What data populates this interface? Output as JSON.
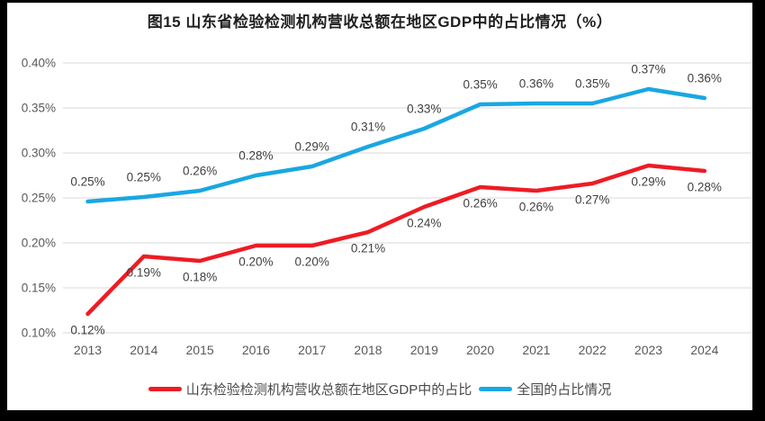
{
  "title": "图15  山东省检验检测机构营收总额在地区GDP中的占比情况（%）",
  "chart_data": {
    "type": "line",
    "title": "图15  山东省检验检测机构营收总额在地区GDP中的占比情况（%）",
    "categories": [
      "2013",
      "2014",
      "2015",
      "2016",
      "2017",
      "2018",
      "2019",
      "2020",
      "2021",
      "2022",
      "2023",
      "2024"
    ],
    "y_axis": {
      "min": 0.1,
      "max": 0.4,
      "step": 0.05,
      "tick_labels": [
        "0.10%",
        "0.15%",
        "0.20%",
        "0.25%",
        "0.30%",
        "0.35%",
        "0.40%"
      ]
    },
    "grid": true,
    "legend_position": "bottom",
    "series": [
      {
        "name": "山东检验检测机构营收总额在地区GDP中的占比",
        "color": "#ed1c24",
        "values": [
          0.12,
          0.19,
          0.18,
          0.2,
          0.2,
          0.21,
          0.24,
          0.26,
          0.26,
          0.27,
          0.29,
          0.28
        ],
        "labels": [
          "0.12%",
          "0.19%",
          "0.18%",
          "0.20%",
          "0.20%",
          "0.21%",
          "0.24%",
          "0.26%",
          "0.26%",
          "0.27%",
          "0.29%",
          "0.28%"
        ],
        "plot_values": [
          0.121,
          0.185,
          0.18,
          0.197,
          0.197,
          0.212,
          0.24,
          0.262,
          0.258,
          0.266,
          0.286,
          0.28
        ],
        "label_position": "below"
      },
      {
        "name": "全国的占比情况",
        "color": "#1aa7e1",
        "values": [
          0.25,
          0.25,
          0.26,
          0.28,
          0.29,
          0.31,
          0.33,
          0.35,
          0.36,
          0.35,
          0.37,
          0.36
        ],
        "labels": [
          "0.25%",
          "0.25%",
          "0.26%",
          "0.28%",
          "0.29%",
          "0.31%",
          "0.33%",
          "0.35%",
          "0.36%",
          "0.35%",
          "0.37%",
          "0.36%"
        ],
        "plot_values": [
          0.246,
          0.251,
          0.258,
          0.275,
          0.285,
          0.307,
          0.327,
          0.354,
          0.355,
          0.355,
          0.371,
          0.361
        ],
        "label_position": "above"
      }
    ],
    "style": {
      "gridline_color": "#d9d9d9",
      "axis_text_color": "#595959",
      "data_label_color": "#404040"
    }
  }
}
